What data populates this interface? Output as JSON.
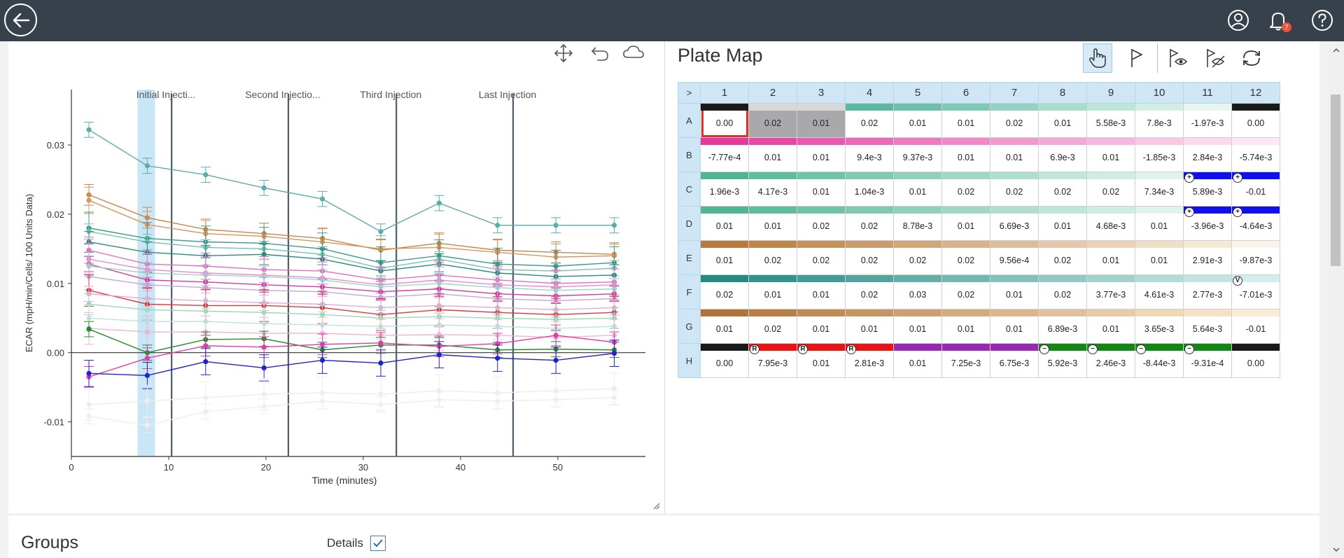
{
  "topbar": {
    "notification_count": "7"
  },
  "chart": {
    "ylabel": "ECAR (mpH/min/Cells/ 100 Units Data)",
    "xlabel": "Time (minutes)",
    "injections": [
      "Initial Injecti...",
      "Second Injectio...",
      "Third Injection",
      "Last Injection"
    ]
  },
  "chart_data": {
    "type": "line",
    "xlabel": "Time (minutes)",
    "ylabel": "ECAR (mpH/min/Cells/ 100 Units Data)",
    "xlim": [
      0,
      59
    ],
    "ylim": [
      -0.015,
      0.038
    ],
    "x_ticks": [
      "0",
      "10",
      "20",
      "30",
      "40",
      "50"
    ],
    "y_ticks": [
      "-0.01",
      "0.00",
      "0.01",
      "0.02",
      "0.03"
    ],
    "x": [
      1.8,
      7.8,
      13.8,
      19.8,
      25.8,
      31.8,
      37.8,
      43.8,
      49.8,
      55.8
    ],
    "injection_times": [
      10.3,
      22.3,
      33.4,
      45.4
    ],
    "highlight_x": [
      6.8,
      8.6
    ],
    "grid": false,
    "series": [
      {
        "color": "#5aaeaa",
        "values": [
          0.0322,
          0.027,
          0.0257,
          0.0238,
          0.0222,
          0.0175,
          0.0216,
          0.0184,
          0.0184,
          0.0184
        ]
      },
      {
        "color": "#c4874a",
        "values": [
          0.0228,
          0.0195,
          0.0178,
          0.0172,
          0.0165,
          0.0148,
          0.0158,
          0.0148,
          0.0145,
          0.0142
        ]
      },
      {
        "color": "#d9955c",
        "values": [
          0.022,
          0.0185,
          0.0172,
          0.0168,
          0.016,
          0.015,
          0.0152,
          0.0145,
          0.0138,
          0.014
        ]
      },
      {
        "color": "#3d9a91",
        "values": [
          0.018,
          0.0165,
          0.016,
          0.0158,
          0.015,
          0.013,
          0.014,
          0.0128,
          0.0125,
          0.013
        ]
      },
      {
        "color": "#78c2ad",
        "values": [
          0.0175,
          0.016,
          0.0152,
          0.015,
          0.0142,
          0.0122,
          0.0135,
          0.012,
          0.0118,
          0.0122
        ]
      },
      {
        "color": "#2a8a82",
        "values": [
          0.016,
          0.0145,
          0.014,
          0.0142,
          0.0135,
          0.0118,
          0.0128,
          0.0115,
          0.011,
          0.0112
        ]
      },
      {
        "color": "#e36fbf",
        "values": [
          0.0148,
          0.0128,
          0.0125,
          0.012,
          0.0118,
          0.0105,
          0.0112,
          0.0105,
          0.01,
          0.0102
        ]
      },
      {
        "color": "#ee87cf",
        "values": [
          0.0135,
          0.012,
          0.0115,
          0.0112,
          0.0108,
          0.0098,
          0.0105,
          0.0098,
          0.0095,
          0.0098
        ]
      },
      {
        "color": "#cf3fa0",
        "values": [
          0.0128,
          0.0105,
          0.0102,
          0.0098,
          0.0095,
          0.0088,
          0.0092,
          0.0085,
          0.0082,
          0.0085
        ]
      },
      {
        "color": "#9ed6c6",
        "values": [
          0.0125,
          0.0115,
          0.0112,
          0.011,
          0.0105,
          0.0095,
          0.01,
          0.0094,
          0.009,
          0.0092
        ]
      },
      {
        "color": "#c5a4d9",
        "values": [
          0.011,
          0.0098,
          0.0094,
          0.009,
          0.0088,
          0.008,
          0.0085,
          0.0078,
          0.0075,
          0.0078
        ]
      },
      {
        "color": "#d93a3a",
        "values": [
          0.009,
          0.007,
          0.0068,
          0.0068,
          0.0065,
          0.0055,
          0.0062,
          0.0058,
          0.0055,
          0.0058
        ]
      },
      {
        "color": "#e8a9d5",
        "values": [
          0.0085,
          0.0078,
          0.0075,
          0.0072,
          0.007,
          0.0065,
          0.0068,
          0.0065,
          0.0062,
          0.0065
        ]
      },
      {
        "color": "#9ed6b8",
        "values": [
          0.007,
          0.0062,
          0.006,
          0.0058,
          0.0055,
          0.005,
          0.0052,
          0.005,
          0.0048,
          0.005
        ]
      },
      {
        "color": "#bfe3d8",
        "values": [
          0.005,
          0.0045,
          0.0045,
          0.0042,
          0.004,
          0.0038,
          0.004,
          0.0038,
          0.0035,
          0.0038
        ]
      },
      {
        "color": "#eab5d8",
        "values": [
          0.0035,
          0.003,
          0.003,
          0.0028,
          0.0028,
          0.0025,
          0.0026,
          0.0025,
          0.0022,
          0.0025
        ]
      },
      {
        "color": "#2b8a2b",
        "values": [
          0.0034,
          0.0,
          0.0019,
          0.002,
          0.0004,
          0.0011,
          0.0011,
          0.0004,
          0.0005,
          0.0004
        ]
      },
      {
        "color": "#e23da6",
        "values": [
          -0.0035,
          -0.0008,
          0.001,
          0.0008,
          0.0012,
          0.0014,
          0.0009,
          0.0013,
          0.0025,
          0.0015
        ]
      },
      {
        "color": "#2222cc",
        "values": [
          -0.003,
          -0.0033,
          -0.0013,
          -0.0022,
          -0.0011,
          -0.0015,
          -0.0003,
          -0.0008,
          -0.0011,
          -0.0001
        ]
      },
      {
        "color": "#ededed",
        "values": [
          -0.0075,
          -0.007,
          -0.0065,
          -0.006,
          -0.0058,
          -0.006,
          -0.0055,
          -0.0058,
          -0.0055,
          -0.0052
        ]
      },
      {
        "color": "#f4eaf0",
        "values": [
          -0.0092,
          -0.0105,
          -0.0085,
          -0.0078,
          -0.007,
          -0.0075,
          -0.0068,
          -0.007,
          -0.0068,
          -0.0065
        ]
      }
    ]
  },
  "plate_map": {
    "title": "Plate Map",
    "corner": ">",
    "columns": [
      "1",
      "2",
      "3",
      "4",
      "5",
      "6",
      "7",
      "8",
      "9",
      "10",
      "11",
      "12"
    ],
    "rows": [
      {
        "label": "A",
        "cells": [
          {
            "v": "0.00",
            "bar": "#1a1a1a",
            "sel": true
          },
          {
            "v": "0.02",
            "bar": "#d8d8d8",
            "grey": true
          },
          {
            "v": "0.01",
            "bar": "#d8d8d8",
            "grey": true
          },
          {
            "v": "0.02",
            "bar": "#5bb89c"
          },
          {
            "v": "0.01",
            "bar": "#6cc0a6"
          },
          {
            "v": "0.01",
            "bar": "#80c9b3"
          },
          {
            "v": "0.02",
            "bar": "#93d2c0"
          },
          {
            "v": "0.01",
            "bar": "#a8dccb"
          },
          {
            "v": "5.58e-3",
            "bar": "#bde5d8"
          },
          {
            "v": "7.8e-3",
            "bar": "#d3eee5"
          },
          {
            "v": "-1.97e-3",
            "bar": "#e6f5f0"
          },
          {
            "v": "0.00",
            "bar": "#1a1a1a"
          }
        ]
      },
      {
        "label": "B",
        "cells": [
          {
            "v": "-7.77e-4",
            "bar": "#e8389f"
          },
          {
            "v": "0.01",
            "bar": "#ea48a8"
          },
          {
            "v": "0.01",
            "bar": "#ec58b0"
          },
          {
            "v": "9.4e-3",
            "bar": "#ee68b8"
          },
          {
            "v": "9.37e-3",
            "bar": "#f078c0"
          },
          {
            "v": "0.01",
            "bar": "#f288c8"
          },
          {
            "v": "0.01",
            "bar": "#f398cf"
          },
          {
            "v": "6.9e-3",
            "bar": "#f5a8d7"
          },
          {
            "v": "0.01",
            "bar": "#f7b8df"
          },
          {
            "v": "-1.85e-3",
            "bar": "#f9c8e6"
          },
          {
            "v": "2.84e-3",
            "bar": "#fbd8ee"
          },
          {
            "v": "-5.74e-3",
            "bar": "#fde8f5"
          }
        ]
      },
      {
        "label": "C",
        "cells": [
          {
            "v": "1.96e-3",
            "bar": "#4fb593"
          },
          {
            "v": "4.17e-3",
            "bar": "#5fbc9d"
          },
          {
            "v": "0.01",
            "bar": "#6fc3a7"
          },
          {
            "v": "1.04e-3",
            "bar": "#80cab1"
          },
          {
            "v": "0.01",
            "bar": "#90d1bb"
          },
          {
            "v": "0.02",
            "bar": "#a0d8c5"
          },
          {
            "v": "0.02",
            "bar": "#b0dfcf"
          },
          {
            "v": "0.02",
            "bar": "#c0e6d9"
          },
          {
            "v": "0.02",
            "bar": "#d0ede3"
          },
          {
            "v": "7.34e-3",
            "bar": "#e0f4ed"
          },
          {
            "v": "5.89e-3",
            "bar": "#1010ee",
            "mark": "+"
          },
          {
            "v": "-0.01",
            "bar": "#1010ee",
            "mark": "+"
          }
        ]
      },
      {
        "label": "D",
        "cells": [
          {
            "v": "0.01",
            "bar": "#4fb593"
          },
          {
            "v": "0.01",
            "bar": "#5fbc9d"
          },
          {
            "v": "0.02",
            "bar": "#6fc3a7"
          },
          {
            "v": "0.02",
            "bar": "#80cab1"
          },
          {
            "v": "8.78e-3",
            "bar": "#90d1bb"
          },
          {
            "v": "0.01",
            "bar": "#a0d8c5"
          },
          {
            "v": "6.69e-3",
            "bar": "#b0dfcf"
          },
          {
            "v": "0.01",
            "bar": "#c0e6d9"
          },
          {
            "v": "4.68e-3",
            "bar": "#d0ede3"
          },
          {
            "v": "0.01",
            "bar": "#e0f4ed"
          },
          {
            "v": "-3.96e-3",
            "bar": "#1010ee",
            "mark": "+"
          },
          {
            "v": "-4.64e-3",
            "bar": "#1010ee",
            "mark": "+"
          }
        ]
      },
      {
        "label": "E",
        "cells": [
          {
            "v": "0.01",
            "bar": "#b97b3d"
          },
          {
            "v": "0.02",
            "bar": "#bf864c"
          },
          {
            "v": "0.02",
            "bar": "#c5915b"
          },
          {
            "v": "0.02",
            "bar": "#cb9c6b"
          },
          {
            "v": "0.02",
            "bar": "#d1a77a"
          },
          {
            "v": "0.02",
            "bar": "#d7b28a"
          },
          {
            "v": "9.56e-4",
            "bar": "#ddbd99"
          },
          {
            "v": "0.02",
            "bar": "#e3c8a9"
          },
          {
            "v": "0.01",
            "bar": "#e9d3b8"
          },
          {
            "v": "0.01",
            "bar": "#efdec8"
          },
          {
            "v": "2.91e-3",
            "bar": "#f5e9d7"
          },
          {
            "v": "-9.87e-3",
            "bar": "#faf3ea"
          }
        ]
      },
      {
        "label": "F",
        "cells": [
          {
            "v": "0.02",
            "bar": "#238a84"
          },
          {
            "v": "0.01",
            "bar": "#32938d"
          },
          {
            "v": "0.01",
            "bar": "#429c96"
          },
          {
            "v": "0.02",
            "bar": "#52a59f"
          },
          {
            "v": "0.03",
            "bar": "#62aea9"
          },
          {
            "v": "0.02",
            "bar": "#72b7b2"
          },
          {
            "v": "0.01",
            "bar": "#82c0bb"
          },
          {
            "v": "0.02",
            "bar": "#92c9c5"
          },
          {
            "v": "3.77e-3",
            "bar": "#a2d2ce"
          },
          {
            "v": "4.61e-3",
            "bar": "#b2dbd8"
          },
          {
            "v": "2.77e-3",
            "bar": "#c2e4e1"
          },
          {
            "v": "-7.01e-3",
            "bar": "#d2edeb",
            "mark": "V"
          }
        ]
      },
      {
        "label": "G",
        "cells": [
          {
            "v": "0.01",
            "bar": "#b0743a"
          },
          {
            "v": "0.02",
            "bar": "#b77f47"
          },
          {
            "v": "0.01",
            "bar": "#be8a55"
          },
          {
            "v": "0.01",
            "bar": "#c59563"
          },
          {
            "v": "0.01",
            "bar": "#cca071"
          },
          {
            "v": "0.01",
            "bar": "#d3ab7f"
          },
          {
            "v": "0.01",
            "bar": "#dab68d"
          },
          {
            "v": "6.89e-3",
            "bar": "#e1c19b"
          },
          {
            "v": "0.01",
            "bar": "#e8cca9"
          },
          {
            "v": "3.65e-3",
            "bar": "#efd7b7"
          },
          {
            "v": "5.64e-3",
            "bar": "#f4e1c6"
          },
          {
            "v": "-0.01",
            "bar": "#f8ebd8"
          }
        ]
      },
      {
        "label": "H",
        "cells": [
          {
            "v": "0.00",
            "bar": "#1a1a1a"
          },
          {
            "v": "7.95e-3",
            "bar": "#ee1111",
            "mark": "R"
          },
          {
            "v": "0.01",
            "bar": "#ee1111",
            "mark": "R"
          },
          {
            "v": "2.81e-3",
            "bar": "#ee1111",
            "mark": "R"
          },
          {
            "v": "0.01",
            "bar": "#9a26b8"
          },
          {
            "v": "7.25e-3",
            "bar": "#9a26b8"
          },
          {
            "v": "6.75e-3",
            "bar": "#9a26b8"
          },
          {
            "v": "5.92e-3",
            "bar": "#118811",
            "mark": "−"
          },
          {
            "v": "2.46e-3",
            "bar": "#118811",
            "mark": "−"
          },
          {
            "v": "-8.44e-3",
            "bar": "#118811",
            "mark": "−"
          },
          {
            "v": "-9.31e-4",
            "bar": "#118811",
            "mark": "−"
          },
          {
            "v": "0.00",
            "bar": "#1a1a1a"
          }
        ]
      }
    ]
  },
  "groups": {
    "title": "Groups",
    "details_label": "Details",
    "details_checked": true
  }
}
